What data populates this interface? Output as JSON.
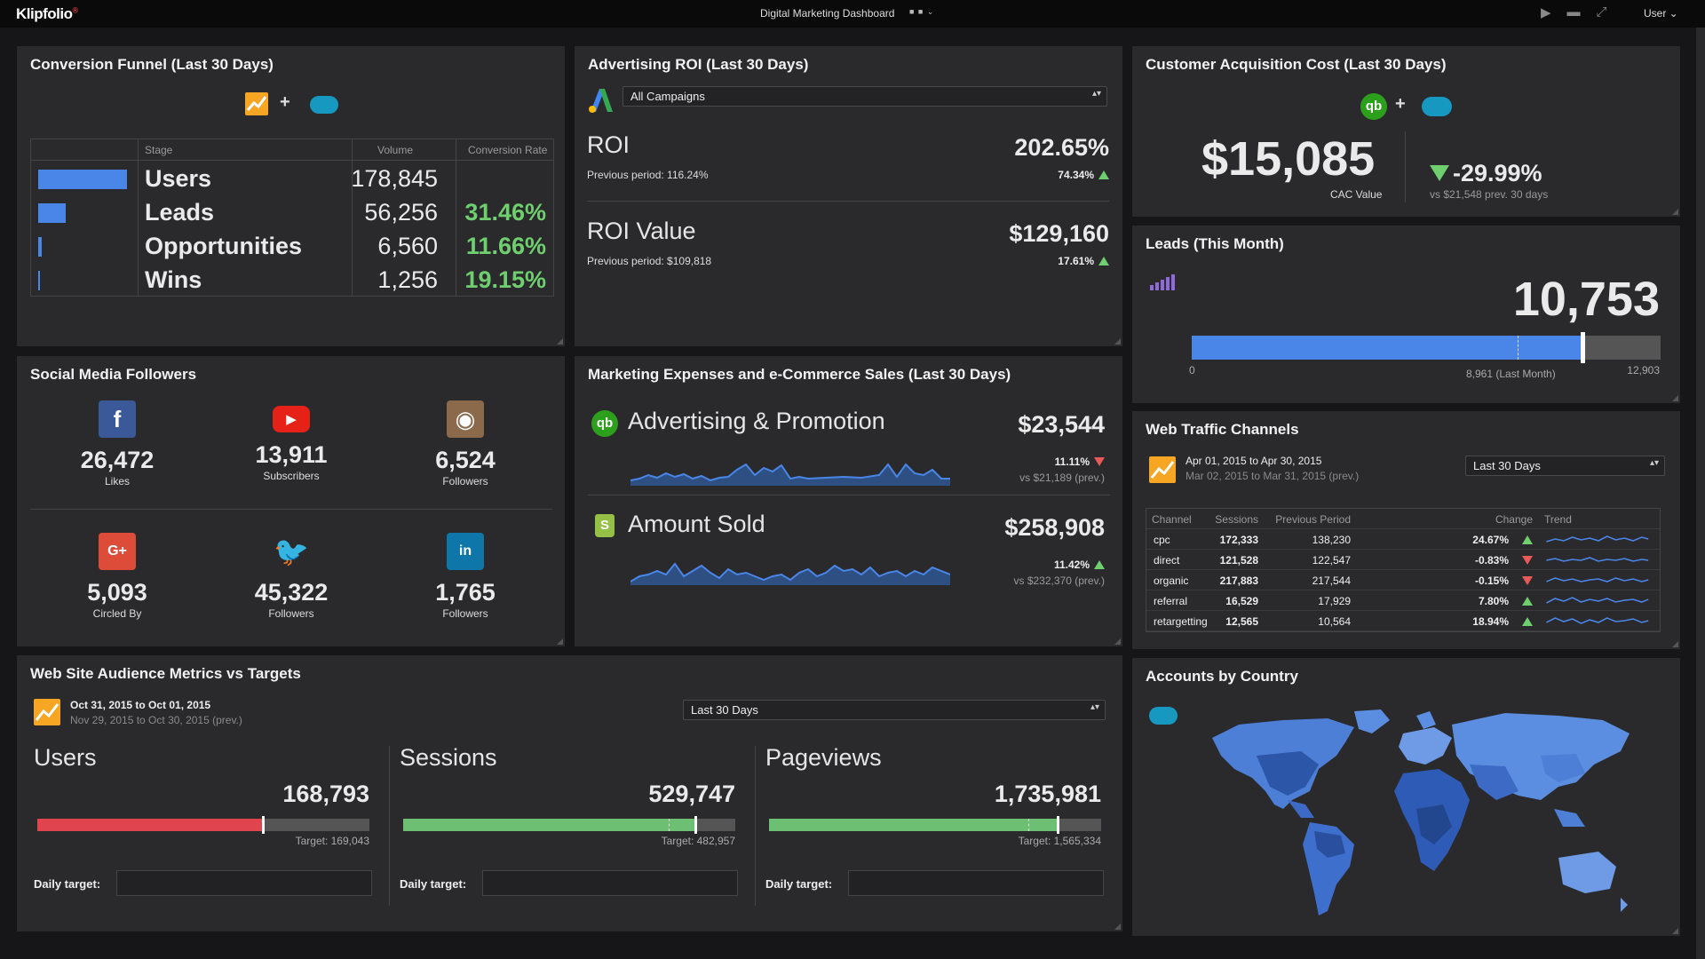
{
  "topbar": {
    "logo": "Klipfolio",
    "logo_mark": "®",
    "title": "Digital Marketing Dashboard",
    "user": "User"
  },
  "funnel": {
    "title": "Conversion Funnel (Last 30 Days)",
    "plus": "+",
    "headers": {
      "stage": "Stage",
      "volume": "Volume",
      "rate": "Conversion Rate"
    },
    "rows": [
      {
        "stage": "Users",
        "volume": "178,845",
        "rate": "",
        "share": 1.0
      },
      {
        "stage": "Leads",
        "volume": "56,256",
        "rate": "31.46%",
        "share": 0.3146
      },
      {
        "stage": "Opportunities",
        "volume": "6,560",
        "rate": "11.66%",
        "share": 0.0367
      },
      {
        "stage": "Wins",
        "volume": "1,256",
        "rate": "19.15%",
        "share": 0.007
      }
    ]
  },
  "roi": {
    "title": "Advertising ROI (Last 30 Days)",
    "select": "All Campaigns",
    "roi_label": "ROI",
    "roi_value": "202.65%",
    "roi_prev": "Previous period: 116.24%",
    "roi_change": "74.34%",
    "value_label": "ROI Value",
    "value_value": "$129,160",
    "value_prev": "Previous period: $109,818",
    "value_change": "17.61%"
  },
  "cac": {
    "title": "Customer Acquisition Cost (Last 30 Days)",
    "plus": "+",
    "value": "$15,085",
    "value_label": "CAC Value",
    "change": "-29.99%",
    "change_sub": "vs $21,548 prev. 30 days"
  },
  "leads": {
    "title": "Leads (This Month)",
    "value": "10,753",
    "min": "0",
    "prev": "8,961 (Last Month)",
    "max": "12,903",
    "current_fraction": 0.8334,
    "prev_fraction": 0.6945
  },
  "social": {
    "title": "Social Media Followers",
    "items": [
      {
        "name": "facebook-icon",
        "glyph": "f",
        "value": "26,472",
        "label": "Likes",
        "color": "#3b5998"
      },
      {
        "name": "youtube-icon",
        "glyph": "▶",
        "value": "13,911",
        "label": "Subscribers",
        "color": "#e62117"
      },
      {
        "name": "instagram-icon",
        "glyph": "◉",
        "value": "6,524",
        "label": "Followers",
        "color": "#8a6a4a"
      },
      {
        "name": "google-plus-icon",
        "glyph": "G+",
        "value": "5,093",
        "label": "Circled By",
        "color": "#dd4b39"
      },
      {
        "name": "twitter-icon",
        "glyph": "🐦",
        "value": "45,322",
        "label": "Followers",
        "color": "#2a2a2d"
      },
      {
        "name": "linkedin-icon",
        "glyph": "in",
        "value": "1,765",
        "label": "Followers",
        "color": "#0e76a8"
      }
    ]
  },
  "expenses": {
    "title": "Marketing Expenses and e-Commerce Sales (Last 30 Days)",
    "adv_label": "Advertising & Promotion",
    "adv_value": "$23,544",
    "adv_change": "11.11%",
    "adv_prev": "vs $21,189 (prev.)",
    "sold_label": "Amount Sold",
    "sold_value": "$258,908",
    "sold_change": "11.42%",
    "sold_prev": "vs $232,370 (prev.)"
  },
  "traffic": {
    "title": "Web Traffic Channels",
    "date": "Apr 01, 2015 to Apr 30, 2015",
    "date_prev": "Mar 02, 2015 to Mar 31, 2015 (prev.)",
    "select": "Last 30 Days",
    "headers": {
      "channel": "Channel",
      "sessions": "Sessions",
      "prev": "Previous Period",
      "change": "Change",
      "trend": "Trend"
    },
    "rows": [
      {
        "channel": "cpc",
        "sessions": "172,333",
        "prev": "138,230",
        "change": "24.67%",
        "dir": "up"
      },
      {
        "channel": "direct",
        "sessions": "121,528",
        "prev": "122,547",
        "change": "-0.83%",
        "dir": "down"
      },
      {
        "channel": "organic",
        "sessions": "217,883",
        "prev": "217,544",
        "change": "-0.15%",
        "dir": "down"
      },
      {
        "channel": "referral",
        "sessions": "16,529",
        "prev": "17,929",
        "change": "7.80%",
        "dir": "up"
      },
      {
        "channel": "retargetting",
        "sessions": "12,565",
        "prev": "10,564",
        "change": "18.94%",
        "dir": "up"
      }
    ]
  },
  "audience": {
    "title": "Web Site Audience Metrics vs Targets",
    "date": "Oct 31, 2015 to Oct 01, 2015",
    "date_prev": "Nov 29, 2015 to Oct 30, 2015 (prev.)",
    "select": "Last 30 Days",
    "daily_label": "Daily target:",
    "metrics": [
      {
        "label": "Users",
        "value": "168,793",
        "target": "Target: 169,043",
        "fraction": 0.68,
        "target_fraction": 0.68,
        "color": "#e0454f"
      },
      {
        "label": "Sessions",
        "value": "529,747",
        "target": "Target: 482,957",
        "fraction": 0.88,
        "target_fraction": 0.8,
        "color": "#6dbf73"
      },
      {
        "label": "Pageviews",
        "value": "1,735,981",
        "target": "Target: 1,565,334",
        "fraction": 0.87,
        "target_fraction": 0.78,
        "color": "#6dbf73"
      }
    ]
  },
  "accounts": {
    "title": "Accounts by Country"
  }
}
